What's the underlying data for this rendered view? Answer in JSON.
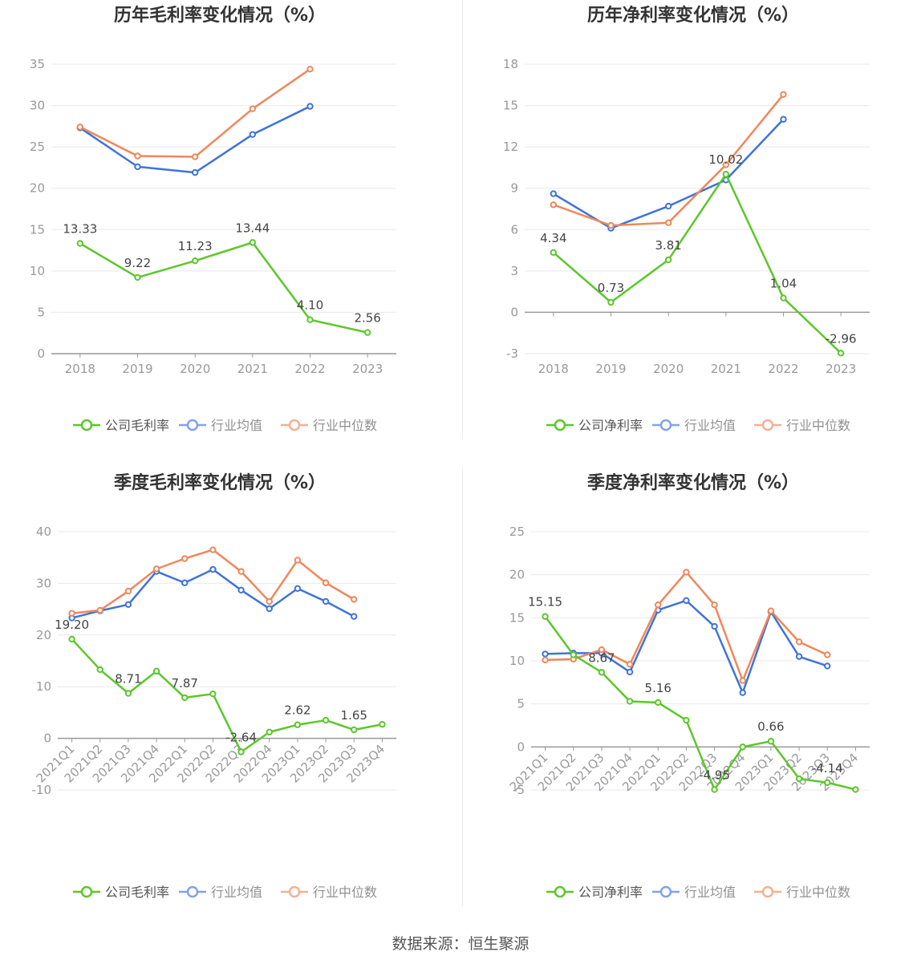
{
  "colors": {
    "company": "#5cc72a",
    "industry_avg": "#3f73d9",
    "industry_median": "#f0875a",
    "grid": "#e8e8f0",
    "axis": "#999999",
    "tick": "#999999",
    "title": "#333333",
    "label": "#444444"
  },
  "legend": {
    "item2": "行业均值",
    "item3": "行业中位数"
  },
  "footer": "数据来源：恒生聚源",
  "chart_data": [
    {
      "type": "line",
      "title": "历年毛利率变化情况（%）",
      "categories": [
        "2018",
        "2019",
        "2020",
        "2021",
        "2022",
        "2023"
      ],
      "yticks": [
        0,
        5,
        10,
        15,
        20,
        25,
        30,
        35
      ],
      "ylim": [
        0,
        35
      ],
      "xlabel_rotated": false,
      "grid": true,
      "legend_position": "bottom",
      "series": [
        {
          "name": "公司毛利率",
          "key": "company",
          "values": [
            13.33,
            9.22,
            11.23,
            13.44,
            4.1,
            2.56
          ],
          "labels": [
            "13.33",
            "9.22",
            "11.23",
            "13.44",
            "4.10",
            "2.56"
          ]
        },
        {
          "name": "行业均值",
          "key": "industry_avg",
          "values": [
            27.3,
            22.6,
            21.9,
            26.5,
            29.9,
            null
          ]
        },
        {
          "name": "行业中位数",
          "key": "industry_median",
          "values": [
            27.4,
            23.9,
            23.8,
            29.6,
            34.4,
            null
          ]
        }
      ]
    },
    {
      "type": "line",
      "title": "历年净利率变化情况（%）",
      "categories": [
        "2018",
        "2019",
        "2020",
        "2021",
        "2022",
        "2023"
      ],
      "yticks": [
        -3,
        0,
        3,
        6,
        9,
        12,
        15,
        18
      ],
      "ylim": [
        -3,
        18
      ],
      "xlabel_rotated": false,
      "grid": true,
      "legend_position": "bottom",
      "series": [
        {
          "name": "公司净利率",
          "key": "company",
          "values": [
            4.34,
            0.73,
            3.81,
            10.02,
            1.04,
            -2.96
          ],
          "labels": [
            "4.34",
            "0.73",
            "3.81",
            "10.02",
            "1.04",
            "-2.96"
          ]
        },
        {
          "name": "行业均值",
          "key": "industry_avg",
          "values": [
            8.6,
            6.1,
            7.7,
            9.6,
            14.0,
            null
          ]
        },
        {
          "name": "行业中位数",
          "key": "industry_median",
          "values": [
            7.8,
            6.3,
            6.5,
            10.7,
            15.8,
            null
          ]
        }
      ]
    },
    {
      "type": "line",
      "title": "季度毛利率变化情况（%）",
      "categories": [
        "2021Q1",
        "2021Q2",
        "2021Q3",
        "2021Q4",
        "2022Q1",
        "2022Q2",
        "2022Q3",
        "2022Q4",
        "2023Q1",
        "2023Q2",
        "2023Q3",
        "2023Q4"
      ],
      "yticks": [
        -10,
        0,
        10,
        20,
        30,
        40
      ],
      "ylim": [
        -10,
        40
      ],
      "xlabel_rotated": true,
      "grid": true,
      "legend_position": "bottom",
      "series": [
        {
          "name": "公司毛利率",
          "key": "company",
          "values": [
            19.2,
            13.3,
            8.71,
            13.0,
            7.87,
            8.6,
            -2.64,
            1.2,
            2.62,
            3.5,
            1.65,
            2.7
          ],
          "labels": [
            "19.20",
            "",
            "8.71",
            "",
            "7.87",
            "",
            "-2.64",
            "",
            "2.62",
            "",
            "1.65",
            ""
          ]
        },
        {
          "name": "行业均值",
          "key": "industry_avg",
          "values": [
            23.3,
            24.7,
            25.9,
            32.3,
            30.1,
            32.7,
            28.7,
            25.1,
            29.0,
            26.5,
            23.6,
            null
          ]
        },
        {
          "name": "行业中位数",
          "key": "industry_median",
          "values": [
            24.2,
            24.8,
            28.5,
            32.8,
            34.8,
            36.5,
            32.3,
            26.5,
            34.5,
            30.1,
            26.9,
            null
          ]
        }
      ]
    },
    {
      "type": "line",
      "title": "季度净利率变化情况（%）",
      "categories": [
        "2021Q1",
        "2021Q2",
        "2021Q3",
        "2021Q4",
        "2022Q1",
        "2022Q2",
        "2022Q3",
        "2022Q4",
        "2023Q1",
        "2023Q2",
        "2023Q3",
        "2023Q4"
      ],
      "yticks": [
        -5,
        0,
        5,
        10,
        15,
        20,
        25
      ],
      "ylim": [
        -5,
        25
      ],
      "xlabel_rotated": true,
      "grid": true,
      "legend_position": "bottom",
      "series": [
        {
          "name": "公司净利率",
          "key": "company",
          "values": [
            15.15,
            10.7,
            8.67,
            5.3,
            5.16,
            3.1,
            -4.95,
            0.0,
            0.66,
            -3.7,
            -4.14,
            -4.95
          ],
          "labels": [
            "15.15",
            "",
            "8.67",
            "",
            "5.16",
            "",
            "-4.95",
            "",
            "0.66",
            "",
            "-4.14",
            ""
          ]
        },
        {
          "name": "行业均值",
          "key": "industry_avg",
          "values": [
            10.8,
            10.9,
            10.9,
            8.7,
            15.9,
            17.0,
            14.0,
            6.3,
            15.7,
            10.5,
            9.4,
            null
          ]
        },
        {
          "name": "行业中位数",
          "key": "industry_median",
          "values": [
            10.1,
            10.2,
            11.3,
            9.6,
            16.5,
            20.3,
            16.5,
            7.7,
            15.8,
            12.2,
            10.7,
            null
          ]
        }
      ]
    }
  ]
}
